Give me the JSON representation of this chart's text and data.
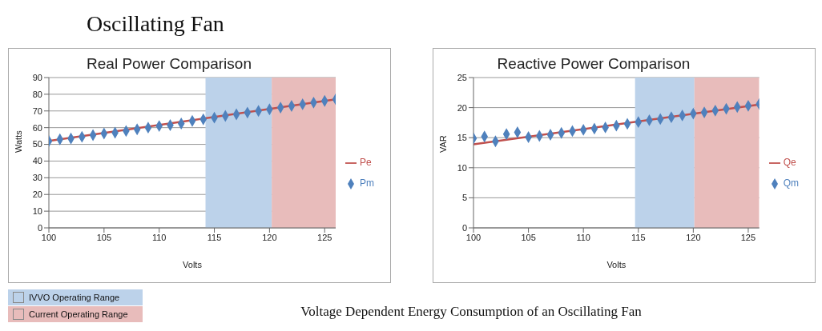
{
  "chart_data": [
    {
      "type": "line",
      "title": "Real Power Comparison",
      "xlabel": "Volts",
      "ylabel": "Watts",
      "xlim": [
        100,
        126
      ],
      "xticks": [
        100,
        105,
        110,
        115,
        120,
        125
      ],
      "ylim": [
        0,
        90
      ],
      "yticks": [
        0,
        10,
        20,
        30,
        40,
        50,
        60,
        70,
        80,
        90
      ],
      "grid": "y",
      "legend": "right",
      "annotations": [
        "Oscillating Fan",
        "Voltage Dependent Energy Consumption of an Oscillating Fan"
      ],
      "bands": [
        {
          "axis": "x",
          "from": 114.2,
          "to": 120.2,
          "label": "IVVO Operating Range",
          "color": "#bcd2ea"
        },
        {
          "axis": "x",
          "from": 120.2,
          "to": 126,
          "label": "Current Operating Range",
          "color": "#e8bcbb"
        }
      ],
      "series": [
        {
          "name": "Pe",
          "marker": "none",
          "color": "#c0504d",
          "x": [
            100,
            126
          ],
          "values": [
            52,
            77
          ]
        },
        {
          "name": "Pm",
          "type": "scatter",
          "marker": "diamond",
          "color": "#4f81bd",
          "x": [
            100,
            101,
            102,
            103,
            104,
            105,
            106,
            107,
            108,
            109,
            110,
            111,
            112,
            113,
            114,
            115,
            116,
            117,
            118,
            119,
            120,
            121,
            122,
            123,
            124,
            125,
            126
          ],
          "values": [
            52,
            53,
            53.5,
            54.5,
            55.5,
            56.5,
            57,
            58,
            59,
            60,
            61,
            61.5,
            62.5,
            64,
            65,
            66,
            67,
            68,
            69,
            70,
            71,
            72,
            73,
            74,
            75,
            76,
            77
          ]
        }
      ]
    },
    {
      "type": "line",
      "title": "Reactive Power Comparison",
      "xlabel": "Volts",
      "ylabel": "VAR",
      "xlim": [
        100,
        126
      ],
      "xticks": [
        100,
        105,
        110,
        115,
        120,
        125
      ],
      "ylim": [
        0,
        25
      ],
      "yticks": [
        0,
        5,
        10,
        15,
        20,
        25
      ],
      "grid": "y",
      "legend": "right",
      "bands": [
        {
          "axis": "x",
          "from": 114.7,
          "to": 120.1,
          "color": "#bcd2ea"
        },
        {
          "axis": "x",
          "from": 120.1,
          "to": 126,
          "color": "#e8bcbb"
        }
      ],
      "series": [
        {
          "name": "Qe",
          "marker": "none",
          "color": "#c0504d",
          "x": [
            100,
            126
          ],
          "values": [
            13.9,
            20.5
          ]
        },
        {
          "name": "Qm",
          "type": "scatter",
          "marker": "diamond",
          "color": "#4f81bd",
          "x": [
            100,
            101,
            102,
            103,
            104,
            105,
            106,
            107,
            108,
            109,
            110,
            111,
            112,
            113,
            114,
            115,
            116,
            117,
            118,
            119,
            120,
            121,
            122,
            123,
            124,
            125,
            126
          ],
          "values": [
            14.9,
            15.2,
            14.4,
            15.6,
            15.9,
            15.1,
            15.3,
            15.5,
            15.8,
            16.1,
            16.3,
            16.5,
            16.7,
            17.0,
            17.3,
            17.6,
            17.9,
            18.1,
            18.4,
            18.7,
            19.0,
            19.2,
            19.5,
            19.8,
            20.1,
            20.3,
            20.6
          ]
        }
      ]
    }
  ]
}
